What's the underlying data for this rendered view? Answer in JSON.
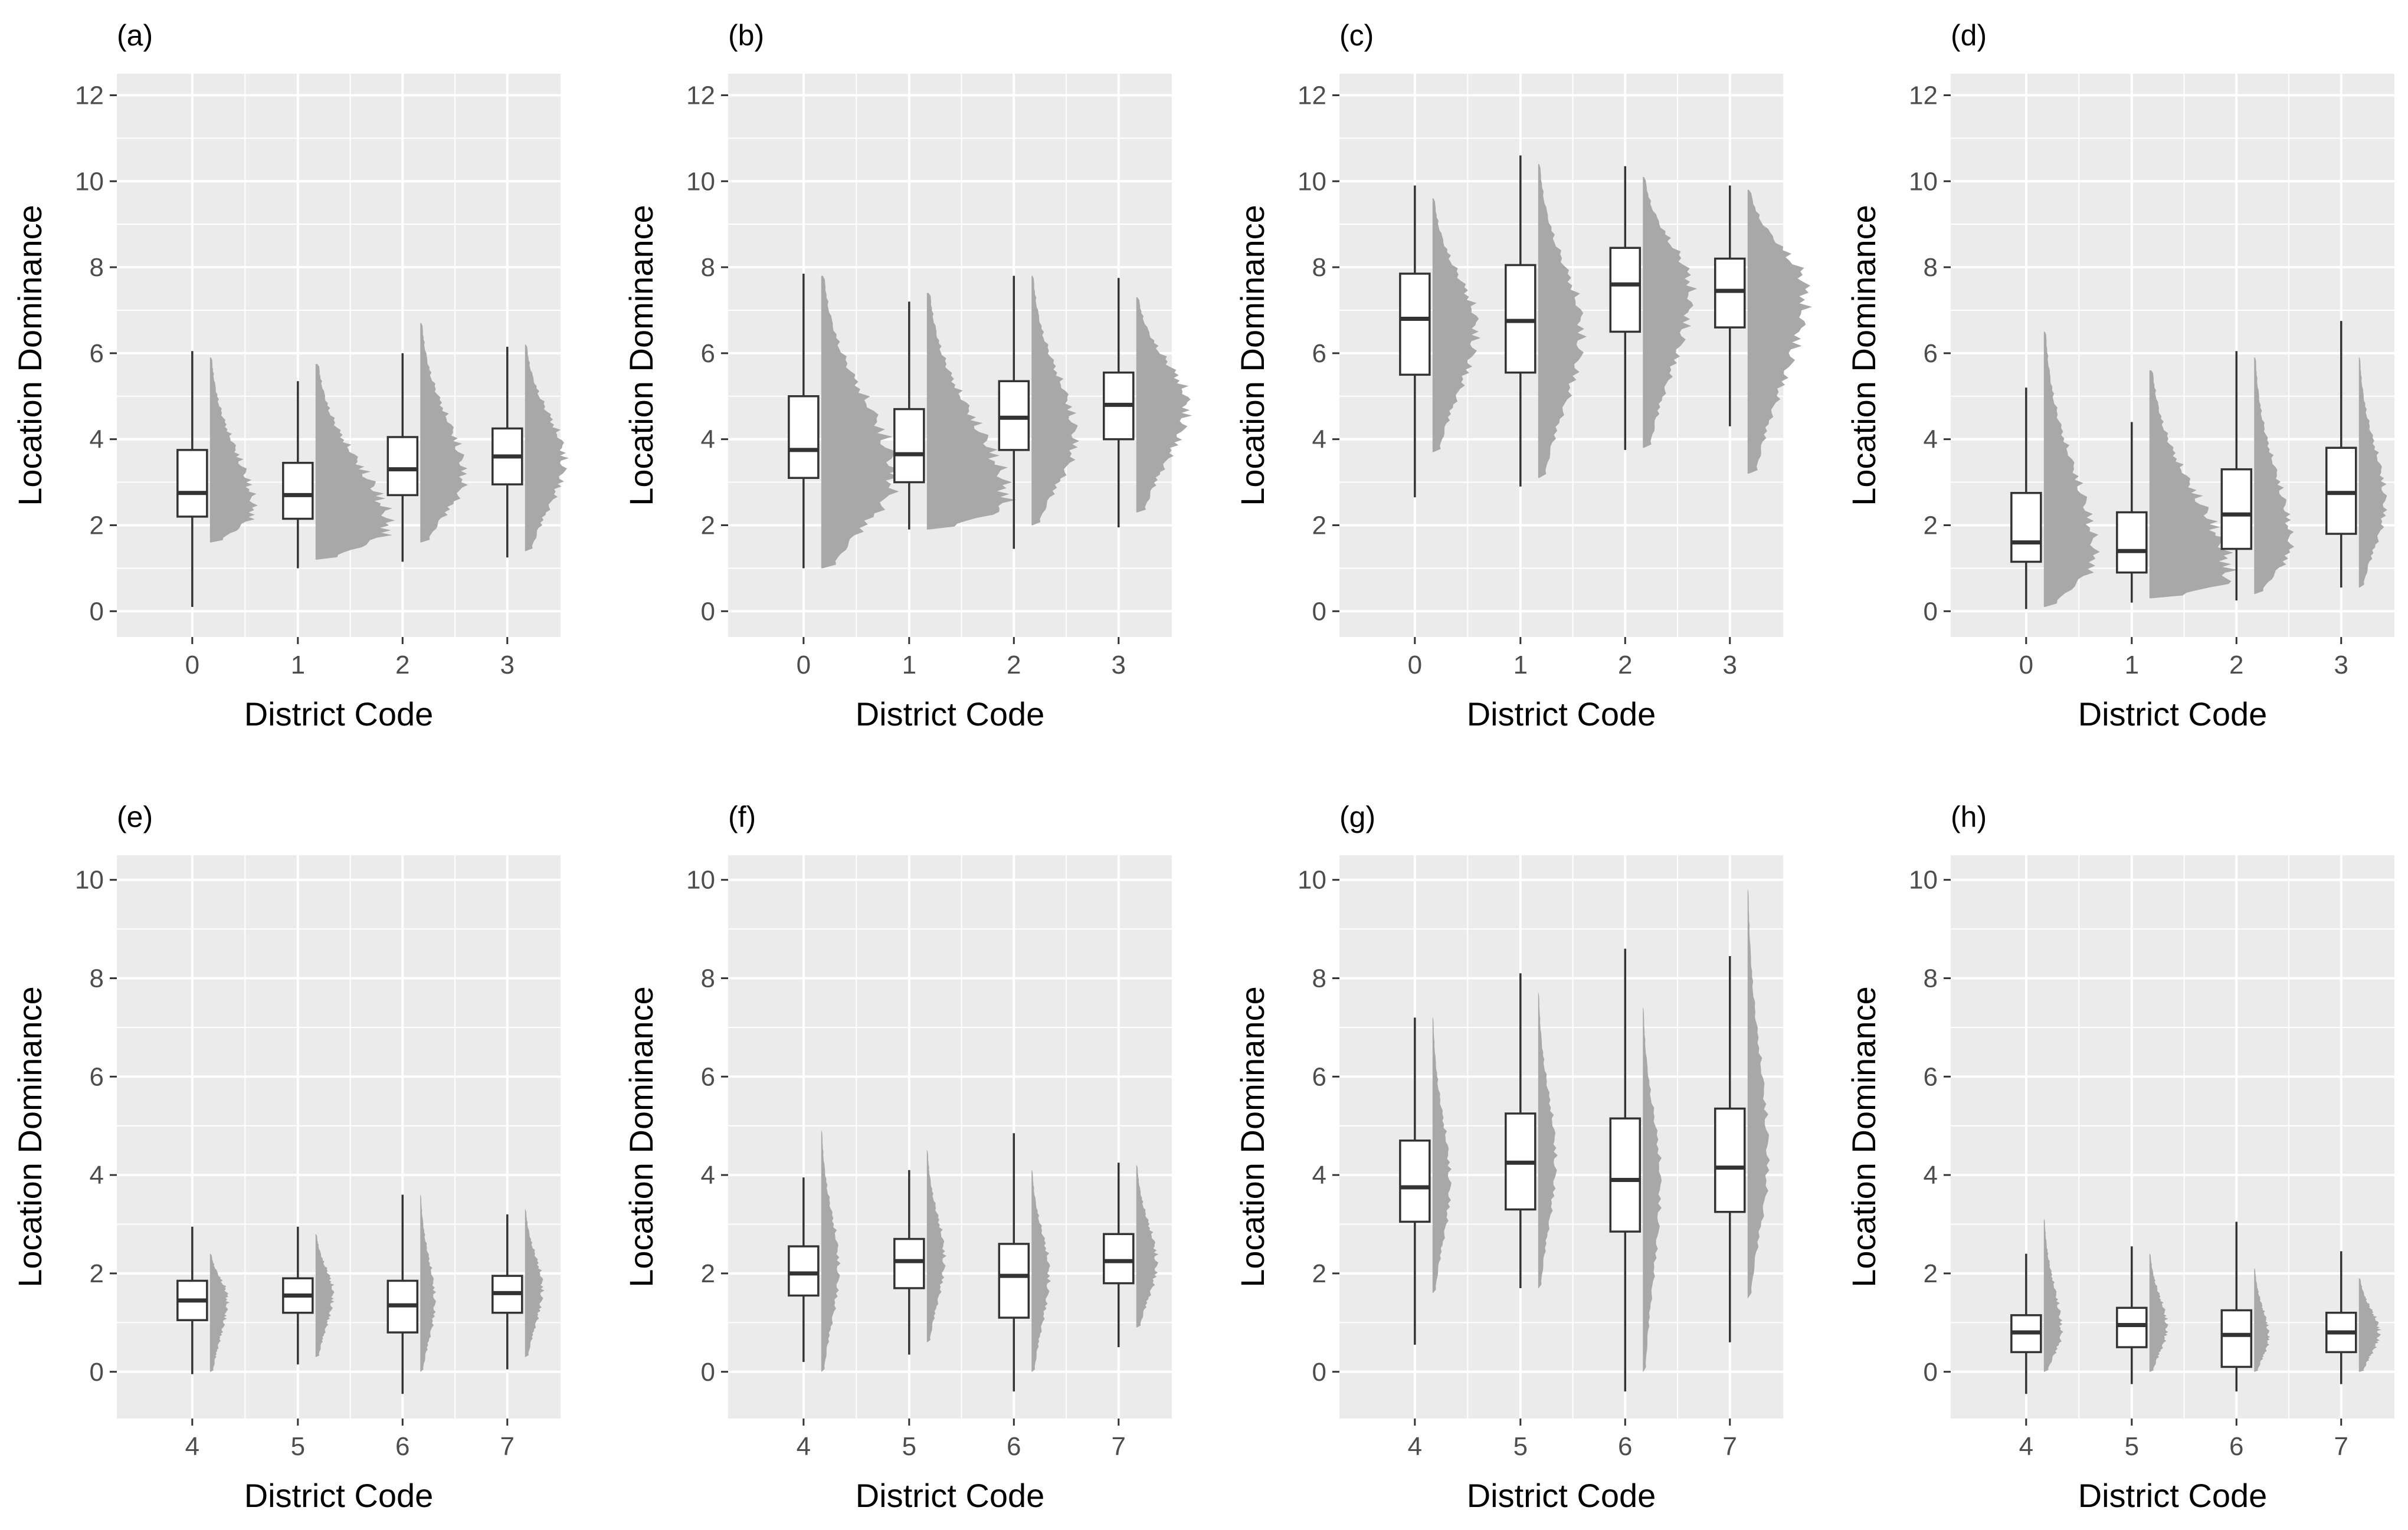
{
  "colors": {
    "panel": "#ebebeb",
    "grid": "#ffffff",
    "box": "#333333",
    "distribution": "#a8a8a8"
  },
  "chart_data": [
    {
      "tag": "(a)",
      "type": "box",
      "xlabel": "District Code",
      "ylabel": "Location Dominance",
      "ylim": [
        -0.6,
        12.5
      ],
      "yticks": [
        0,
        2,
        4,
        6,
        8,
        10,
        12
      ],
      "categories": [
        "0",
        "1",
        "2",
        "3"
      ],
      "boxes": [
        {
          "min": 0.1,
          "q1": 2.2,
          "median": 2.75,
          "q3": 3.75,
          "max": 6.05,
          "dmin": 1.6,
          "dmax": 5.9,
          "dpeak": 2.3,
          "dw": 0.3
        },
        {
          "min": 1.0,
          "q1": 2.15,
          "median": 2.7,
          "q3": 3.45,
          "max": 5.35,
          "dmin": 1.2,
          "dmax": 5.75,
          "dpeak": 1.9,
          "dw": 0.5
        },
        {
          "min": 1.15,
          "q1": 2.7,
          "median": 3.3,
          "q3": 4.05,
          "max": 6.0,
          "dmin": 1.6,
          "dmax": 6.7,
          "dpeak": 3.1,
          "dw": 0.3
        },
        {
          "min": 1.25,
          "q1": 2.95,
          "median": 3.6,
          "q3": 4.25,
          "max": 6.15,
          "dmin": 1.4,
          "dmax": 6.2,
          "dpeak": 3.5,
          "dw": 0.27
        }
      ]
    },
    {
      "tag": "(b)",
      "type": "box",
      "xlabel": "District Code",
      "ylabel": "Location Dominance",
      "ylim": [
        -0.6,
        12.5
      ],
      "yticks": [
        0,
        2,
        4,
        6,
        8,
        10,
        12
      ],
      "categories": [
        "0",
        "1",
        "2",
        "3"
      ],
      "boxes": [
        {
          "min": 1.0,
          "q1": 3.1,
          "median": 3.75,
          "q3": 5.0,
          "max": 7.85,
          "dmin": 1.0,
          "dmax": 7.8,
          "dpeak": 3.1,
          "dw": 0.5
        },
        {
          "min": 1.9,
          "q1": 3.0,
          "median": 3.65,
          "q3": 4.7,
          "max": 7.2,
          "dmin": 1.9,
          "dmax": 7.4,
          "dpeak": 2.5,
          "dw": 0.55
        },
        {
          "min": 1.45,
          "q1": 3.75,
          "median": 4.5,
          "q3": 5.35,
          "max": 7.8,
          "dmin": 2.0,
          "dmax": 7.8,
          "dpeak": 4.0,
          "dw": 0.3
        },
        {
          "min": 1.95,
          "q1": 4.0,
          "median": 4.8,
          "q3": 5.55,
          "max": 7.75,
          "dmin": 2.3,
          "dmax": 7.3,
          "dpeak": 4.8,
          "dw": 0.35
        }
      ]
    },
    {
      "tag": "(c)",
      "type": "box",
      "xlabel": "District Code",
      "ylabel": "Location Dominance",
      "ylim": [
        -0.6,
        12.5
      ],
      "yticks": [
        0,
        2,
        4,
        6,
        8,
        10,
        12
      ],
      "categories": [
        "0",
        "1",
        "2",
        "3"
      ],
      "boxes": [
        {
          "min": 2.65,
          "q1": 5.5,
          "median": 6.8,
          "q3": 7.85,
          "max": 9.9,
          "dmin": 3.7,
          "dmax": 9.6,
          "dpeak": 6.6,
          "dw": 0.3
        },
        {
          "min": 2.9,
          "q1": 5.55,
          "median": 6.75,
          "q3": 8.05,
          "max": 10.6,
          "dmin": 3.1,
          "dmax": 10.4,
          "dpeak": 6.5,
          "dw": 0.3
        },
        {
          "min": 3.75,
          "q1": 6.5,
          "median": 7.6,
          "q3": 8.45,
          "max": 10.35,
          "dmin": 3.8,
          "dmax": 10.1,
          "dpeak": 7.5,
          "dw": 0.33
        },
        {
          "min": 4.3,
          "q1": 6.6,
          "median": 7.45,
          "q3": 8.2,
          "max": 9.9,
          "dmin": 3.2,
          "dmax": 9.8,
          "dpeak": 7.5,
          "dw": 0.4
        }
      ]
    },
    {
      "tag": "(d)",
      "type": "box",
      "xlabel": "District Code",
      "ylabel": "Location Dominance",
      "ylim": [
        -0.6,
        12.5
      ],
      "yticks": [
        0,
        2,
        4,
        6,
        8,
        10,
        12
      ],
      "categories": [
        "0",
        "1",
        "2",
        "3"
      ],
      "boxes": [
        {
          "min": 0.05,
          "q1": 1.15,
          "median": 1.6,
          "q3": 2.75,
          "max": 5.2,
          "dmin": 0.1,
          "dmax": 6.5,
          "dpeak": 1.2,
          "dw": 0.35
        },
        {
          "min": 0.2,
          "q1": 0.9,
          "median": 1.4,
          "q3": 2.3,
          "max": 4.4,
          "dmin": 0.3,
          "dmax": 5.6,
          "dpeak": 0.75,
          "dw": 0.55
        },
        {
          "min": 0.25,
          "q1": 1.45,
          "median": 2.25,
          "q3": 3.3,
          "max": 6.05,
          "dmin": 0.4,
          "dmax": 5.9,
          "dpeak": 1.5,
          "dw": 0.25
        },
        {
          "min": 0.55,
          "q1": 1.8,
          "median": 2.75,
          "q3": 3.8,
          "max": 6.75,
          "dmin": 0.55,
          "dmax": 5.9,
          "dpeak": 2.5,
          "dw": 0.18
        }
      ]
    },
    {
      "tag": "(e)",
      "type": "box",
      "xlabel": "District Code",
      "ylabel": "Location Dominance",
      "ylim": [
        -0.95,
        10.5
      ],
      "yticks": [
        0,
        2,
        4,
        6,
        8,
        10
      ],
      "categories": [
        "4",
        "5",
        "6",
        "7"
      ],
      "boxes": [
        {
          "min": -0.05,
          "q1": 1.05,
          "median": 1.45,
          "q3": 1.85,
          "max": 2.95,
          "dmin": 0.0,
          "dmax": 2.4,
          "dpeak": 1.5,
          "dw": 0.12
        },
        {
          "min": 0.15,
          "q1": 1.2,
          "median": 1.55,
          "q3": 1.9,
          "max": 2.95,
          "dmin": 0.3,
          "dmax": 2.8,
          "dpeak": 1.6,
          "dw": 0.12
        },
        {
          "min": -0.45,
          "q1": 0.8,
          "median": 1.35,
          "q3": 1.85,
          "max": 3.6,
          "dmin": 0.0,
          "dmax": 3.6,
          "dpeak": 1.4,
          "dw": 0.1
        },
        {
          "min": 0.05,
          "q1": 1.2,
          "median": 1.6,
          "q3": 1.95,
          "max": 3.2,
          "dmin": 0.3,
          "dmax": 3.3,
          "dpeak": 1.7,
          "dw": 0.12
        }
      ]
    },
    {
      "tag": "(f)",
      "type": "box",
      "xlabel": "District Code",
      "ylabel": "Location Dominance",
      "ylim": [
        -0.95,
        10.5
      ],
      "yticks": [
        0,
        2,
        4,
        6,
        8,
        10
      ],
      "categories": [
        "4",
        "5",
        "6",
        "7"
      ],
      "boxes": [
        {
          "min": 0.2,
          "q1": 1.55,
          "median": 2.0,
          "q3": 2.55,
          "max": 3.95,
          "dmin": 0.0,
          "dmax": 4.9,
          "dpeak": 2.1,
          "dw": 0.12
        },
        {
          "min": 0.35,
          "q1": 1.7,
          "median": 2.25,
          "q3": 2.7,
          "max": 4.1,
          "dmin": 0.6,
          "dmax": 4.5,
          "dpeak": 2.3,
          "dw": 0.12
        },
        {
          "min": -0.4,
          "q1": 1.1,
          "median": 1.95,
          "q3": 2.6,
          "max": 4.85,
          "dmin": 0.0,
          "dmax": 4.1,
          "dpeak": 2.0,
          "dw": 0.12
        },
        {
          "min": 0.5,
          "q1": 1.8,
          "median": 2.25,
          "q3": 2.8,
          "max": 4.25,
          "dmin": 0.9,
          "dmax": 4.2,
          "dpeak": 2.2,
          "dw": 0.14
        }
      ]
    },
    {
      "tag": "(g)",
      "type": "box",
      "xlabel": "District Code",
      "ylabel": "Location Dominance",
      "ylim": [
        -0.95,
        10.5
      ],
      "yticks": [
        0,
        2,
        4,
        6,
        8,
        10
      ],
      "categories": [
        "4",
        "5",
        "6",
        "7"
      ],
      "boxes": [
        {
          "min": 0.55,
          "q1": 3.05,
          "median": 3.75,
          "q3": 4.7,
          "max": 7.2,
          "dmin": 1.6,
          "dmax": 7.2,
          "dpeak": 3.8,
          "dw": 0.12
        },
        {
          "min": 1.7,
          "q1": 3.3,
          "median": 4.25,
          "q3": 5.25,
          "max": 8.1,
          "dmin": 1.7,
          "dmax": 7.7,
          "dpeak": 4.3,
          "dw": 0.12
        },
        {
          "min": -0.4,
          "q1": 2.85,
          "median": 3.9,
          "q3": 5.15,
          "max": 8.6,
          "dmin": 0.0,
          "dmax": 7.4,
          "dpeak": 3.9,
          "dw": 0.12
        },
        {
          "min": 0.6,
          "q1": 3.25,
          "median": 4.15,
          "q3": 5.35,
          "max": 8.45,
          "dmin": 1.5,
          "dmax": 9.8,
          "dpeak": 4.3,
          "dw": 0.14
        }
      ]
    },
    {
      "tag": "(h)",
      "type": "box",
      "xlabel": "District Code",
      "ylabel": "Location Dominance",
      "ylim": [
        -0.95,
        10.5
      ],
      "yticks": [
        0,
        2,
        4,
        6,
        8,
        10
      ],
      "categories": [
        "4",
        "5",
        "6",
        "7"
      ],
      "boxes": [
        {
          "min": -0.45,
          "q1": 0.4,
          "median": 0.8,
          "q3": 1.15,
          "max": 2.4,
          "dmin": 0.0,
          "dmax": 3.1,
          "dpeak": 0.8,
          "dw": 0.12
        },
        {
          "min": -0.25,
          "q1": 0.5,
          "median": 0.95,
          "q3": 1.3,
          "max": 2.55,
          "dmin": 0.0,
          "dmax": 2.4,
          "dpeak": 0.9,
          "dw": 0.12
        },
        {
          "min": -0.4,
          "q1": 0.1,
          "median": 0.75,
          "q3": 1.25,
          "max": 3.05,
          "dmin": 0.0,
          "dmax": 2.1,
          "dpeak": 0.7,
          "dw": 0.1
        },
        {
          "min": -0.25,
          "q1": 0.4,
          "median": 0.8,
          "q3": 1.2,
          "max": 2.45,
          "dmin": 0.0,
          "dmax": 1.9,
          "dpeak": 0.8,
          "dw": 0.14
        }
      ]
    }
  ]
}
